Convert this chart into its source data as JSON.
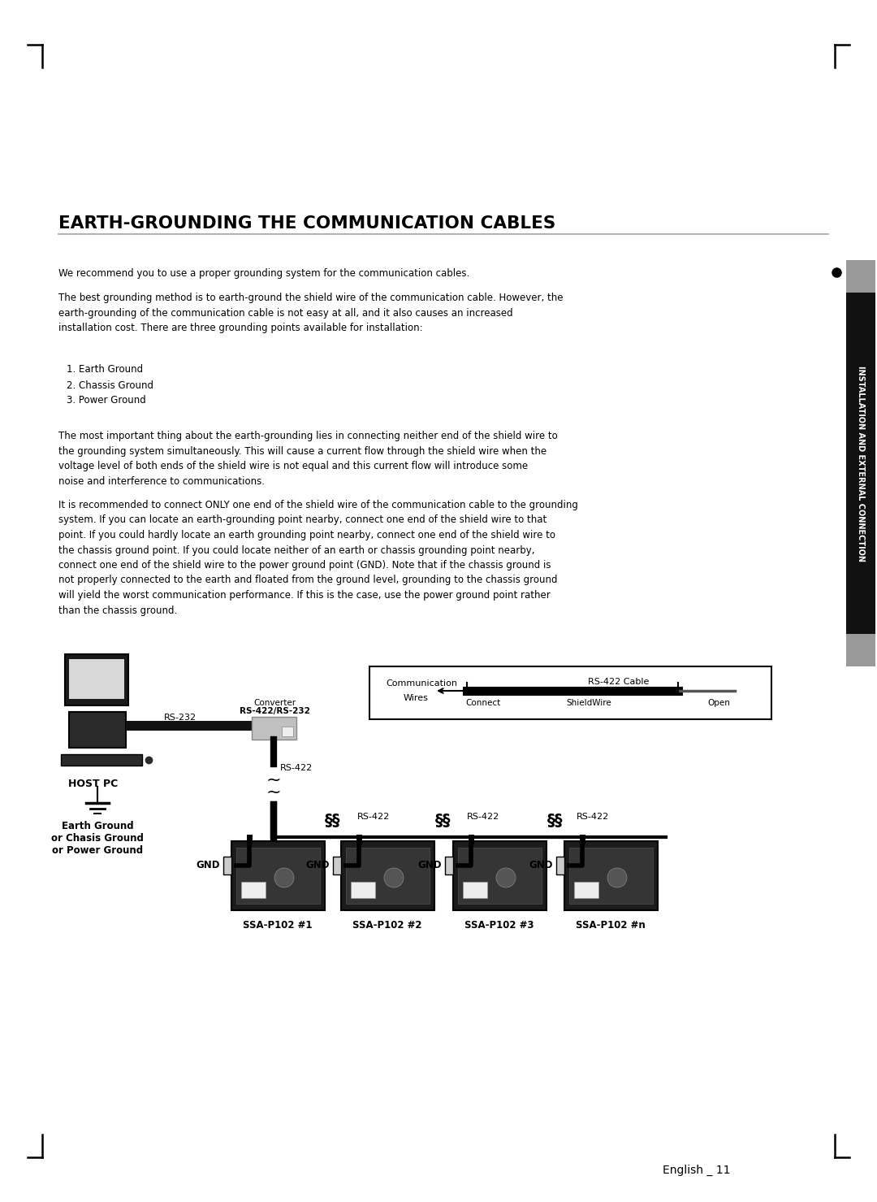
{
  "title": "EARTH-GROUNDING THE COMMUNICATION CABLES",
  "para1": "We recommend you to use a proper grounding system for the communication cables.",
  "para2": "The best grounding method is to earth-ground the shield wire of the communication cable. However, the earth-grounding of the communication cable is not easy at all, and it also causes an increased installation cost. There are three grounding points available for installation:",
  "list_items": [
    "1. Earth Ground",
    "2. Chassis Ground",
    "3. Power Ground"
  ],
  "para3": "The most important thing about the earth-grounding lies in connecting neither end of the shield wire to the grounding system simultaneously. This will cause a current flow through the shield wire when the voltage level of both ends of the shield wire is not equal and this current flow will introduce some noise and interference to communications.",
  "para4": "It is recommended to connect ONLY one end of the shield wire of the communication cable to the grounding system. If you can locate an earth-grounding point nearby, connect one end of the shield wire to that point. If you could hardly locate an earth grounding point nearby, connect one end of the shield wire to the chassis ground point. If you could locate neither of an earth or chassis grounding point nearby, connect one end of the shield wire to the power ground point (GND). Note that if the chassis ground is not properly connected to the earth and floated from the ground level, grounding to the chassis ground will yield the worst communication performance. If this is the case, use the power ground point rather than the chassis ground.",
  "sidebar_text": "INSTALLATION AND EXTERNAL CONNECTION",
  "footer_text": "English _ 11",
  "bg_color": "#ffffff"
}
